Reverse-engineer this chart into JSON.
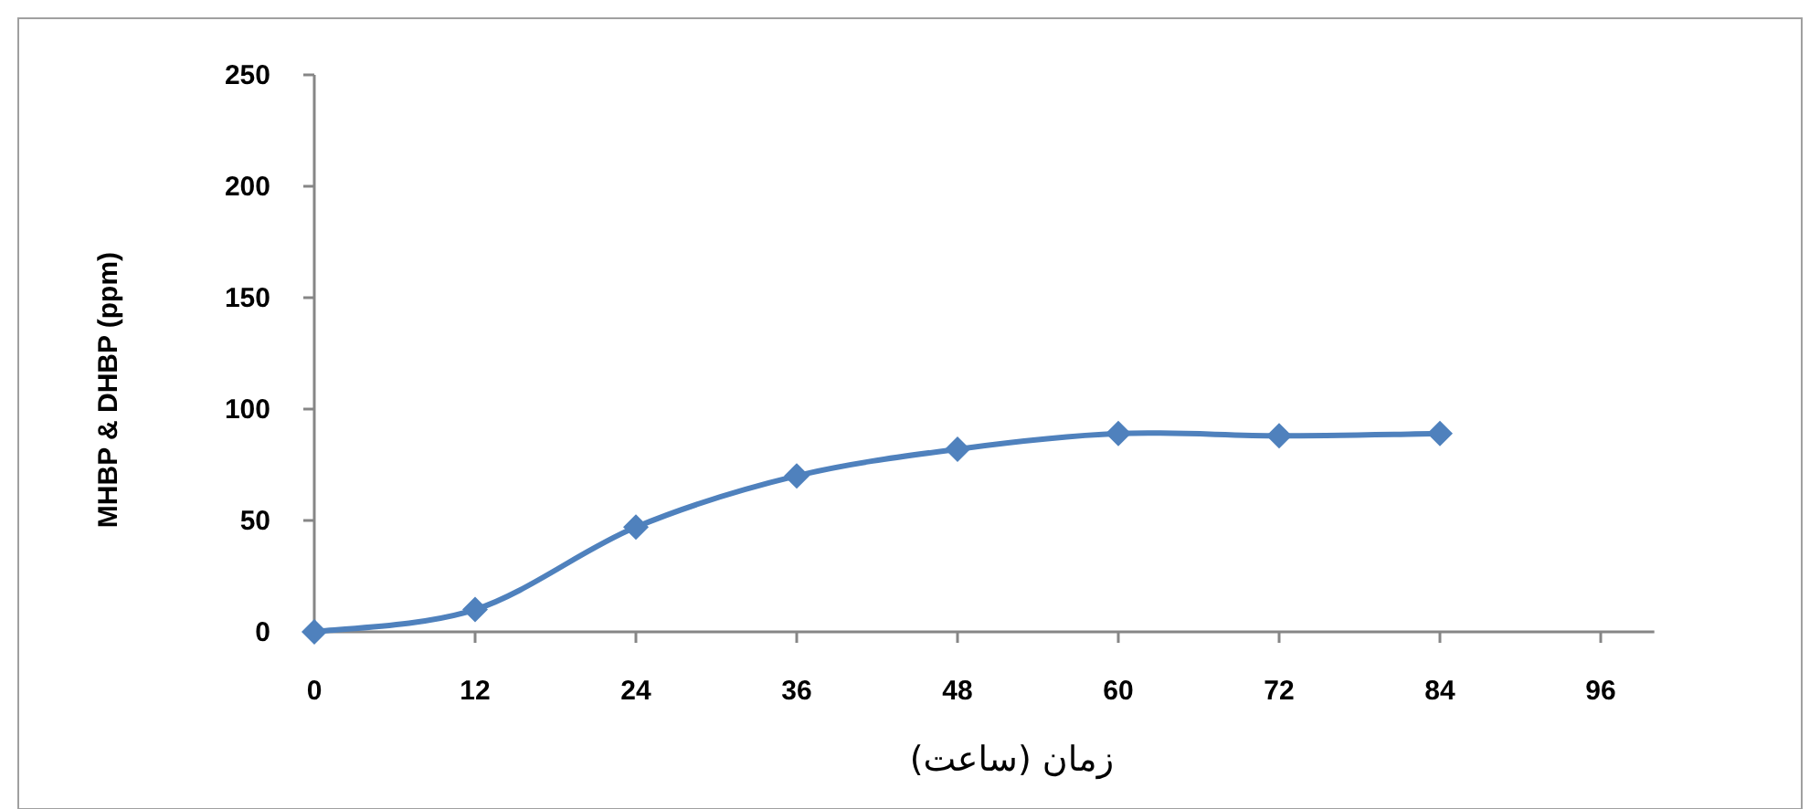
{
  "chart_data": {
    "type": "line",
    "xlabel": "زمان (ساعت)",
    "ylabel": "MHBP & DHBP (ppm)",
    "x": [
      0,
      12,
      24,
      36,
      48,
      60,
      72,
      84
    ],
    "series": [
      {
        "color": "#4f81bd",
        "values": [
          0,
          10,
          47,
          70,
          82,
          89,
          88,
          89
        ]
      }
    ],
    "xlim": [
      0,
      100
    ],
    "xticks": [
      0,
      12,
      24,
      36,
      48,
      60,
      72,
      84,
      96
    ],
    "ylim": [
      0,
      250
    ],
    "yticks": [
      0,
      50,
      100,
      150,
      200,
      250
    ],
    "marker": "diamond",
    "line_style": "solid",
    "grid": false
  }
}
